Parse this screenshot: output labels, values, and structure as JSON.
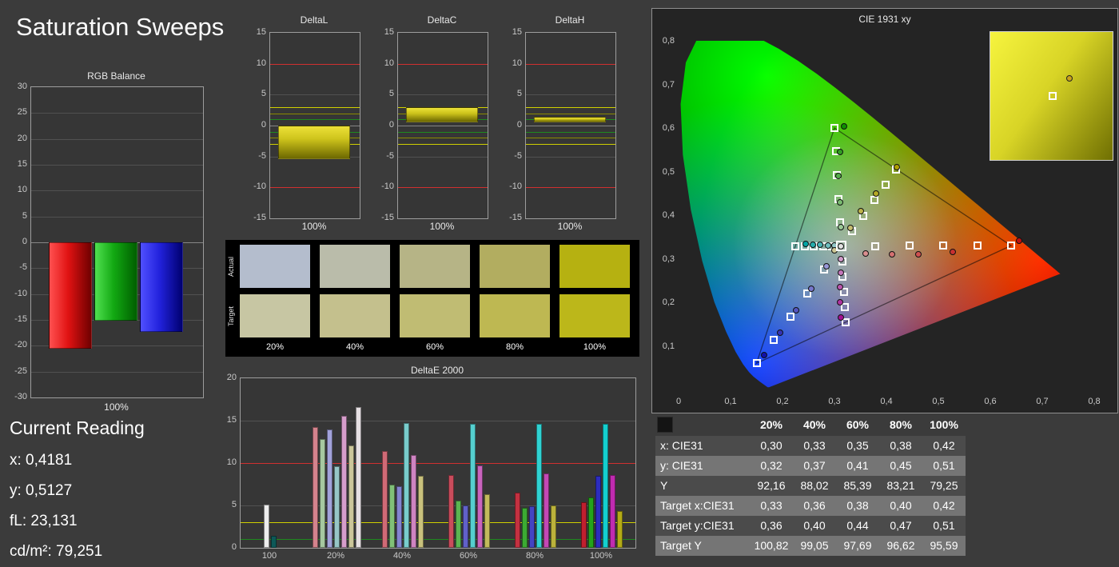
{
  "page": {
    "title": "Saturation Sweeps"
  },
  "current_reading": {
    "title": "Current Reading",
    "lines": [
      "x: 0,4181",
      "y: 0,5127",
      "fL: 23,131",
      "cd/m²: 79,251"
    ]
  },
  "results_table": {
    "columns": [
      "",
      "20%",
      "40%",
      "60%",
      "80%",
      "100%"
    ],
    "rows": [
      {
        "label": "x: CIE31",
        "values": [
          "0,30",
          "0,33",
          "0,35",
          "0,38",
          "0,42"
        ]
      },
      {
        "label": "y: CIE31",
        "values": [
          "0,32",
          "0,37",
          "0,41",
          "0,45",
          "0,51"
        ]
      },
      {
        "label": "Y",
        "values": [
          "92,16",
          "88,02",
          "85,39",
          "83,21",
          "79,25"
        ]
      },
      {
        "label": "Target x:CIE31",
        "values": [
          "0,33",
          "0,36",
          "0,38",
          "0,40",
          "0,42"
        ]
      },
      {
        "label": "Target y:CIE31",
        "values": [
          "0,36",
          "0,40",
          "0,44",
          "0,47",
          "0,51"
        ]
      },
      {
        "label": "Target Y",
        "values": [
          "100,82",
          "99,05",
          "97,69",
          "96,62",
          "95,59"
        ]
      }
    ]
  },
  "swatch_panel": {
    "row_labels": [
      "Actual",
      "Target"
    ],
    "col_labels": [
      "20%",
      "40%",
      "60%",
      "80%",
      "100%"
    ],
    "actual_colors": [
      "#b4bdcd",
      "#babcaa",
      "#b6b486",
      "#b2ad60",
      "#b6b111"
    ],
    "target_colors": [
      "#c7c6a3",
      "#c4c08d",
      "#c0bc73",
      "#beb852",
      "#bcb71a"
    ]
  },
  "chart_data": [
    {
      "id": "rgb_balance",
      "type": "bar",
      "title": "RGB Balance",
      "xlabel": "100%",
      "ylim": [
        -30,
        30
      ],
      "yticks": [
        30,
        25,
        20,
        15,
        10,
        5,
        0,
        -5,
        -10,
        -15,
        -20,
        -25,
        -30
      ],
      "categories": [
        "Red",
        "Green",
        "Blue"
      ],
      "values": [
        -20.5,
        -15.2,
        -17.3
      ],
      "colors": [
        [
          "#ff5050",
          "#e01212",
          "#6f0000"
        ],
        [
          "#50e050",
          "#12a812",
          "#005f00"
        ],
        [
          "#5050ff",
          "#2222dd",
          "#000070"
        ]
      ]
    },
    {
      "id": "delta_l",
      "type": "bar",
      "title": "DeltaL",
      "xlabel": "100%",
      "ylim": [
        -15,
        15
      ],
      "yticks": [
        15,
        10,
        5,
        0,
        -5,
        -10,
        -15
      ],
      "ref_lines": [
        {
          "y": 10,
          "color": "#d03030"
        },
        {
          "y": -10,
          "color": "#d03030"
        },
        {
          "y": 3,
          "color": "#d0d000"
        },
        {
          "y": -3,
          "color": "#d0d000"
        },
        {
          "y": 2,
          "color": "#8a8a00"
        },
        {
          "y": -2,
          "color": "#8a8a00"
        },
        {
          "y": 1,
          "color": "#1e8a1e"
        },
        {
          "y": -1,
          "color": "#1e8a1e"
        }
      ],
      "bar": {
        "from": 0,
        "to": -5.4,
        "colors": [
          "#ece138",
          "#cdc31b",
          "#6d6800"
        ]
      }
    },
    {
      "id": "delta_c",
      "type": "bar",
      "title": "DeltaC",
      "xlabel": "100%",
      "ylim": [
        -15,
        15
      ],
      "yticks": [
        15,
        10,
        5,
        0,
        -5,
        -10,
        -15
      ],
      "ref_lines": [
        {
          "y": 10,
          "color": "#d03030"
        },
        {
          "y": -10,
          "color": "#d03030"
        },
        {
          "y": 3,
          "color": "#d0d000"
        },
        {
          "y": -3,
          "color": "#d0d000"
        },
        {
          "y": 2,
          "color": "#8a8a00"
        },
        {
          "y": -2,
          "color": "#8a8a00"
        },
        {
          "y": 1,
          "color": "#1e8a1e"
        },
        {
          "y": -1,
          "color": "#1e8a1e"
        }
      ],
      "bar": {
        "from": 0.5,
        "to": 3.0,
        "colors": [
          "#ece138",
          "#cdc31b",
          "#6d6800"
        ]
      }
    },
    {
      "id": "delta_h",
      "type": "bar",
      "title": "DeltaH",
      "xlabel": "100%",
      "ylim": [
        -15,
        15
      ],
      "yticks": [
        15,
        10,
        5,
        0,
        -5,
        -10,
        -15
      ],
      "ref_lines": [
        {
          "y": 10,
          "color": "#d03030"
        },
        {
          "y": -10,
          "color": "#d03030"
        },
        {
          "y": 3,
          "color": "#d0d000"
        },
        {
          "y": -3,
          "color": "#d0d000"
        },
        {
          "y": 2,
          "color": "#8a8a00"
        },
        {
          "y": -2,
          "color": "#8a8a00"
        },
        {
          "y": 1,
          "color": "#1e8a1e"
        },
        {
          "y": -1,
          "color": "#1e8a1e"
        }
      ],
      "bar": {
        "from": 0.5,
        "to": 1.4,
        "colors": [
          "#ece138",
          "#cdc31b",
          "#6d6800"
        ]
      }
    },
    {
      "id": "delta_e2000",
      "type": "bar",
      "title": "DeltaE 2000",
      "ylim": [
        0,
        20
      ],
      "yticks": [
        20,
        15,
        10,
        5,
        0
      ],
      "ref_lines": [
        {
          "y": 10,
          "color": "#d03030"
        },
        {
          "y": 3,
          "color": "#d0d000"
        },
        {
          "y": 1,
          "color": "#1e8a1e"
        }
      ],
      "groups": [
        {
          "label": "100",
          "bars": [
            {
              "v": 5.1,
              "c": "#ededed"
            },
            {
              "v": 1.4,
              "c": "#0d5858"
            }
          ]
        },
        {
          "label": "20%",
          "bars": [
            {
              "v": 14.2,
              "c": "#d4838d"
            },
            {
              "v": 12.8,
              "c": "#a6c8a0"
            },
            {
              "v": 14.0,
              "c": "#a2a2da"
            },
            {
              "v": 9.6,
              "c": "#97c6c6"
            },
            {
              "v": 15.6,
              "c": "#d69dcb"
            },
            {
              "v": 12.1,
              "c": "#cbc69a"
            },
            {
              "v": 16.6,
              "c": "#e6e0e3"
            }
          ]
        },
        {
          "label": "40%",
          "bars": [
            {
              "v": 11.4,
              "c": "#d06a76"
            },
            {
              "v": 7.5,
              "c": "#81c078"
            },
            {
              "v": 7.3,
              "c": "#8484d0"
            },
            {
              "v": 14.7,
              "c": "#79cccc"
            },
            {
              "v": 10.9,
              "c": "#cf84c2"
            },
            {
              "v": 8.5,
              "c": "#c9c17d"
            }
          ]
        },
        {
          "label": "60%",
          "bars": [
            {
              "v": 8.6,
              "c": "#c94c5c"
            },
            {
              "v": 5.6,
              "c": "#5bb551"
            },
            {
              "v": 5.0,
              "c": "#6161c9"
            },
            {
              "v": 14.6,
              "c": "#55cfcf"
            },
            {
              "v": 9.7,
              "c": "#c964bd"
            },
            {
              "v": 6.3,
              "c": "#c2ba5c"
            }
          ]
        },
        {
          "label": "80%",
          "bars": [
            {
              "v": 6.5,
              "c": "#c33140"
            },
            {
              "v": 4.7,
              "c": "#3cab33"
            },
            {
              "v": 4.9,
              "c": "#4444c3"
            },
            {
              "v": 14.6,
              "c": "#30d2d2"
            },
            {
              "v": 8.8,
              "c": "#c348b5"
            },
            {
              "v": 5.0,
              "c": "#bbb23b"
            }
          ]
        },
        {
          "label": "100%",
          "bars": [
            {
              "v": 5.4,
              "c": "#c01f2f"
            },
            {
              "v": 5.9,
              "c": "#24a31a"
            },
            {
              "v": 8.5,
              "c": "#2c2cbe"
            },
            {
              "v": 14.6,
              "c": "#14cfcf"
            },
            {
              "v": 8.6,
              "c": "#c02bb0"
            },
            {
              "v": 4.3,
              "c": "#b3aa16"
            }
          ]
        }
      ]
    },
    {
      "id": "cie1931",
      "type": "scatter",
      "title": "CIE 1931 xy",
      "xlim": [
        0,
        0.8
      ],
      "ylim": [
        0,
        0.8
      ],
      "xticks": [
        "0",
        "0,1",
        "0,2",
        "0,3",
        "0,4",
        "0,5",
        "0,6",
        "0,7",
        "0,8"
      ],
      "yticks": [
        "0,1",
        "0,2",
        "0,3",
        "0,4",
        "0,5",
        "0,6",
        "0,7",
        "0,8"
      ],
      "gamut_triangle": [
        [
          0.64,
          0.33
        ],
        [
          0.3,
          0.6
        ],
        [
          0.15,
          0.06
        ]
      ],
      "white_point_target": [
        0.313,
        0.329
      ],
      "sweeps": [
        {
          "name": "red",
          "targets": [
            [
              0.378,
              0.329
            ],
            [
              0.444,
              0.33
            ],
            [
              0.509,
              0.33
            ],
            [
              0.575,
              0.33
            ],
            [
              0.64,
              0.33
            ]
          ],
          "measured": [
            [
              0.36,
              0.312
            ],
            [
              0.41,
              0.31
            ],
            [
              0.462,
              0.31
            ],
            [
              0.528,
              0.315
            ],
            [
              0.655,
              0.342
            ]
          ],
          "colors": [
            "#d98f8f",
            "#d47070",
            "#cf5050",
            "#c83030",
            "#c01010"
          ]
        },
        {
          "name": "green",
          "targets": [
            [
              0.31,
              0.383
            ],
            [
              0.308,
              0.437
            ],
            [
              0.305,
              0.492
            ],
            [
              0.303,
              0.546
            ],
            [
              0.3,
              0.6
            ]
          ],
          "measured": [
            [
              0.312,
              0.372
            ],
            [
              0.31,
              0.43
            ],
            [
              0.308,
              0.49
            ],
            [
              0.31,
              0.545
            ],
            [
              0.318,
              0.604
            ]
          ],
          "colors": [
            "#9cc996",
            "#79bb70",
            "#55ad4a",
            "#329e24",
            "#0f9000"
          ]
        },
        {
          "name": "blue",
          "targets": [
            [
              0.28,
              0.275
            ],
            [
              0.248,
              0.221
            ],
            [
              0.215,
              0.167
            ],
            [
              0.183,
              0.113
            ],
            [
              0.15,
              0.06
            ]
          ],
          "measured": [
            [
              0.285,
              0.282
            ],
            [
              0.256,
              0.232
            ],
            [
              0.226,
              0.182
            ],
            [
              0.196,
              0.13
            ],
            [
              0.165,
              0.078
            ]
          ],
          "colors": [
            "#9898d8",
            "#7676cc",
            "#5555c0",
            "#3333b4",
            "#1111a8"
          ]
        },
        {
          "name": "cyan",
          "targets": [
            [
              0.296,
              0.329
            ],
            [
              0.278,
              0.329
            ],
            [
              0.26,
              0.329
            ],
            [
              0.243,
              0.329
            ],
            [
              0.225,
              0.329
            ]
          ],
          "measured": [
            [
              0.3,
              0.33
            ],
            [
              0.287,
              0.331
            ],
            [
              0.273,
              0.332
            ],
            [
              0.259,
              0.333
            ],
            [
              0.245,
              0.334
            ]
          ],
          "colors": [
            "#93c7c7",
            "#6fbfbf",
            "#4ab6b6",
            "#26adad",
            "#02a4a4"
          ]
        },
        {
          "name": "magenta",
          "targets": [
            [
              0.315,
              0.294
            ],
            [
              0.316,
              0.259
            ],
            [
              0.318,
              0.224
            ],
            [
              0.32,
              0.189
            ],
            [
              0.321,
              0.154
            ]
          ],
          "measured": [
            [
              0.313,
              0.3
            ],
            [
              0.312,
              0.268
            ],
            [
              0.311,
              0.234
            ],
            [
              0.311,
              0.2
            ],
            [
              0.312,
              0.165
            ]
          ],
          "colors": [
            "#d09aca",
            "#c577bc",
            "#ba55ae",
            "#af32a0",
            "#a41092"
          ]
        },
        {
          "name": "yellow",
          "targets": [
            [
              0.334,
              0.364
            ],
            [
              0.356,
              0.399
            ],
            [
              0.377,
              0.434
            ],
            [
              0.398,
              0.47
            ],
            [
              0.419,
              0.505
            ]
          ],
          "measured": [
            [
              0.3,
              0.32
            ],
            [
              0.33,
              0.37
            ],
            [
              0.35,
              0.41
            ],
            [
              0.38,
              0.45
            ],
            [
              0.42,
              0.51
            ]
          ],
          "colors": [
            "#cdc795",
            "#c5bd70",
            "#beb34b",
            "#b6a926",
            "#ae9f01"
          ]
        },
        {
          "name": "white",
          "targets": [],
          "measured": [
            [
              0.312,
              0.328
            ]
          ],
          "colors": [
            "#e2e2e2"
          ]
        }
      ],
      "inset": {
        "colors": [
          "#f6f43e",
          "#d8d426",
          "#6f6f02"
        ],
        "markers": {
          "circle": [
            0.65,
            0.36
          ],
          "square": [
            0.51,
            0.5
          ]
        }
      }
    }
  ]
}
